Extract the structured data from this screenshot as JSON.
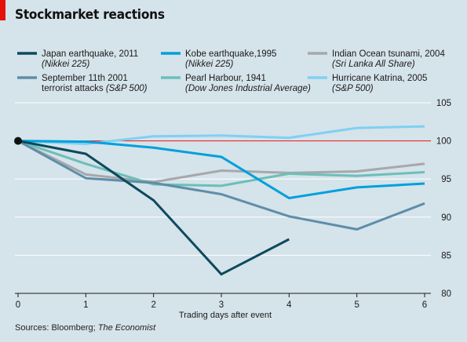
{
  "title": "Stockmarket reactions",
  "source_prefix": "Sources: Bloomberg; ",
  "source_italic": "The Economist",
  "colors": {
    "background": "#d5e3ea",
    "grid": "#ffffff",
    "baseline": "#e3120b",
    "accent": "#e3120b"
  },
  "chart_data": {
    "type": "line",
    "xlabel": "Trading days after event",
    "ylabel": "",
    "x": [
      0,
      1,
      2,
      3,
      4,
      5,
      6
    ],
    "xlim": [
      0,
      6
    ],
    "ylim": [
      80,
      105
    ],
    "yticks": [
      80,
      85,
      90,
      95,
      100,
      105
    ],
    "xticks": [
      0,
      1,
      2,
      3,
      4,
      5,
      6
    ],
    "grid": true,
    "reference_line": 100,
    "legend_placement": "top",
    "series": [
      {
        "name": "Japan earthquake, 2011",
        "sub": "(Nikkei 225)",
        "color": "#0d4a5e",
        "values": [
          100,
          98.3,
          92.2,
          82.5,
          87.1,
          null,
          null
        ]
      },
      {
        "name": "Kobe earthquake,1995",
        "sub": "(Nikkei 225)",
        "color": "#00a0dc",
        "values": [
          100,
          99.9,
          99.1,
          97.9,
          92.5,
          93.9,
          94.4
        ]
      },
      {
        "name": "Indian Ocean tsunami, 2004",
        "sub": "(Sri Lanka All Share)",
        "color": "#a6a8ab",
        "values": [
          100,
          95.6,
          94.6,
          96.1,
          95.8,
          96.0,
          97.0
        ]
      },
      {
        "name": "September 11th 2001",
        "sub": "terrorist attacks",
        "sub2": "(S&P 500)",
        "color": "#5e8ea8",
        "values": [
          100,
          95.1,
          94.5,
          93.0,
          90.1,
          88.4,
          91.8
        ]
      },
      {
        "name": "Pearl Harbour, 1941",
        "sub": "(Dow Jones Industrial Average)",
        "color": "#6cbfb8",
        "values": [
          100,
          97.0,
          94.3,
          94.1,
          95.7,
          95.4,
          95.9
        ]
      },
      {
        "name": "Hurricane Katrina, 2005",
        "sub": "(S&P 500)",
        "color": "#7fd0f3",
        "values": [
          100,
          99.6,
          100.6,
          100.7,
          100.4,
          101.7,
          101.9
        ]
      }
    ]
  }
}
